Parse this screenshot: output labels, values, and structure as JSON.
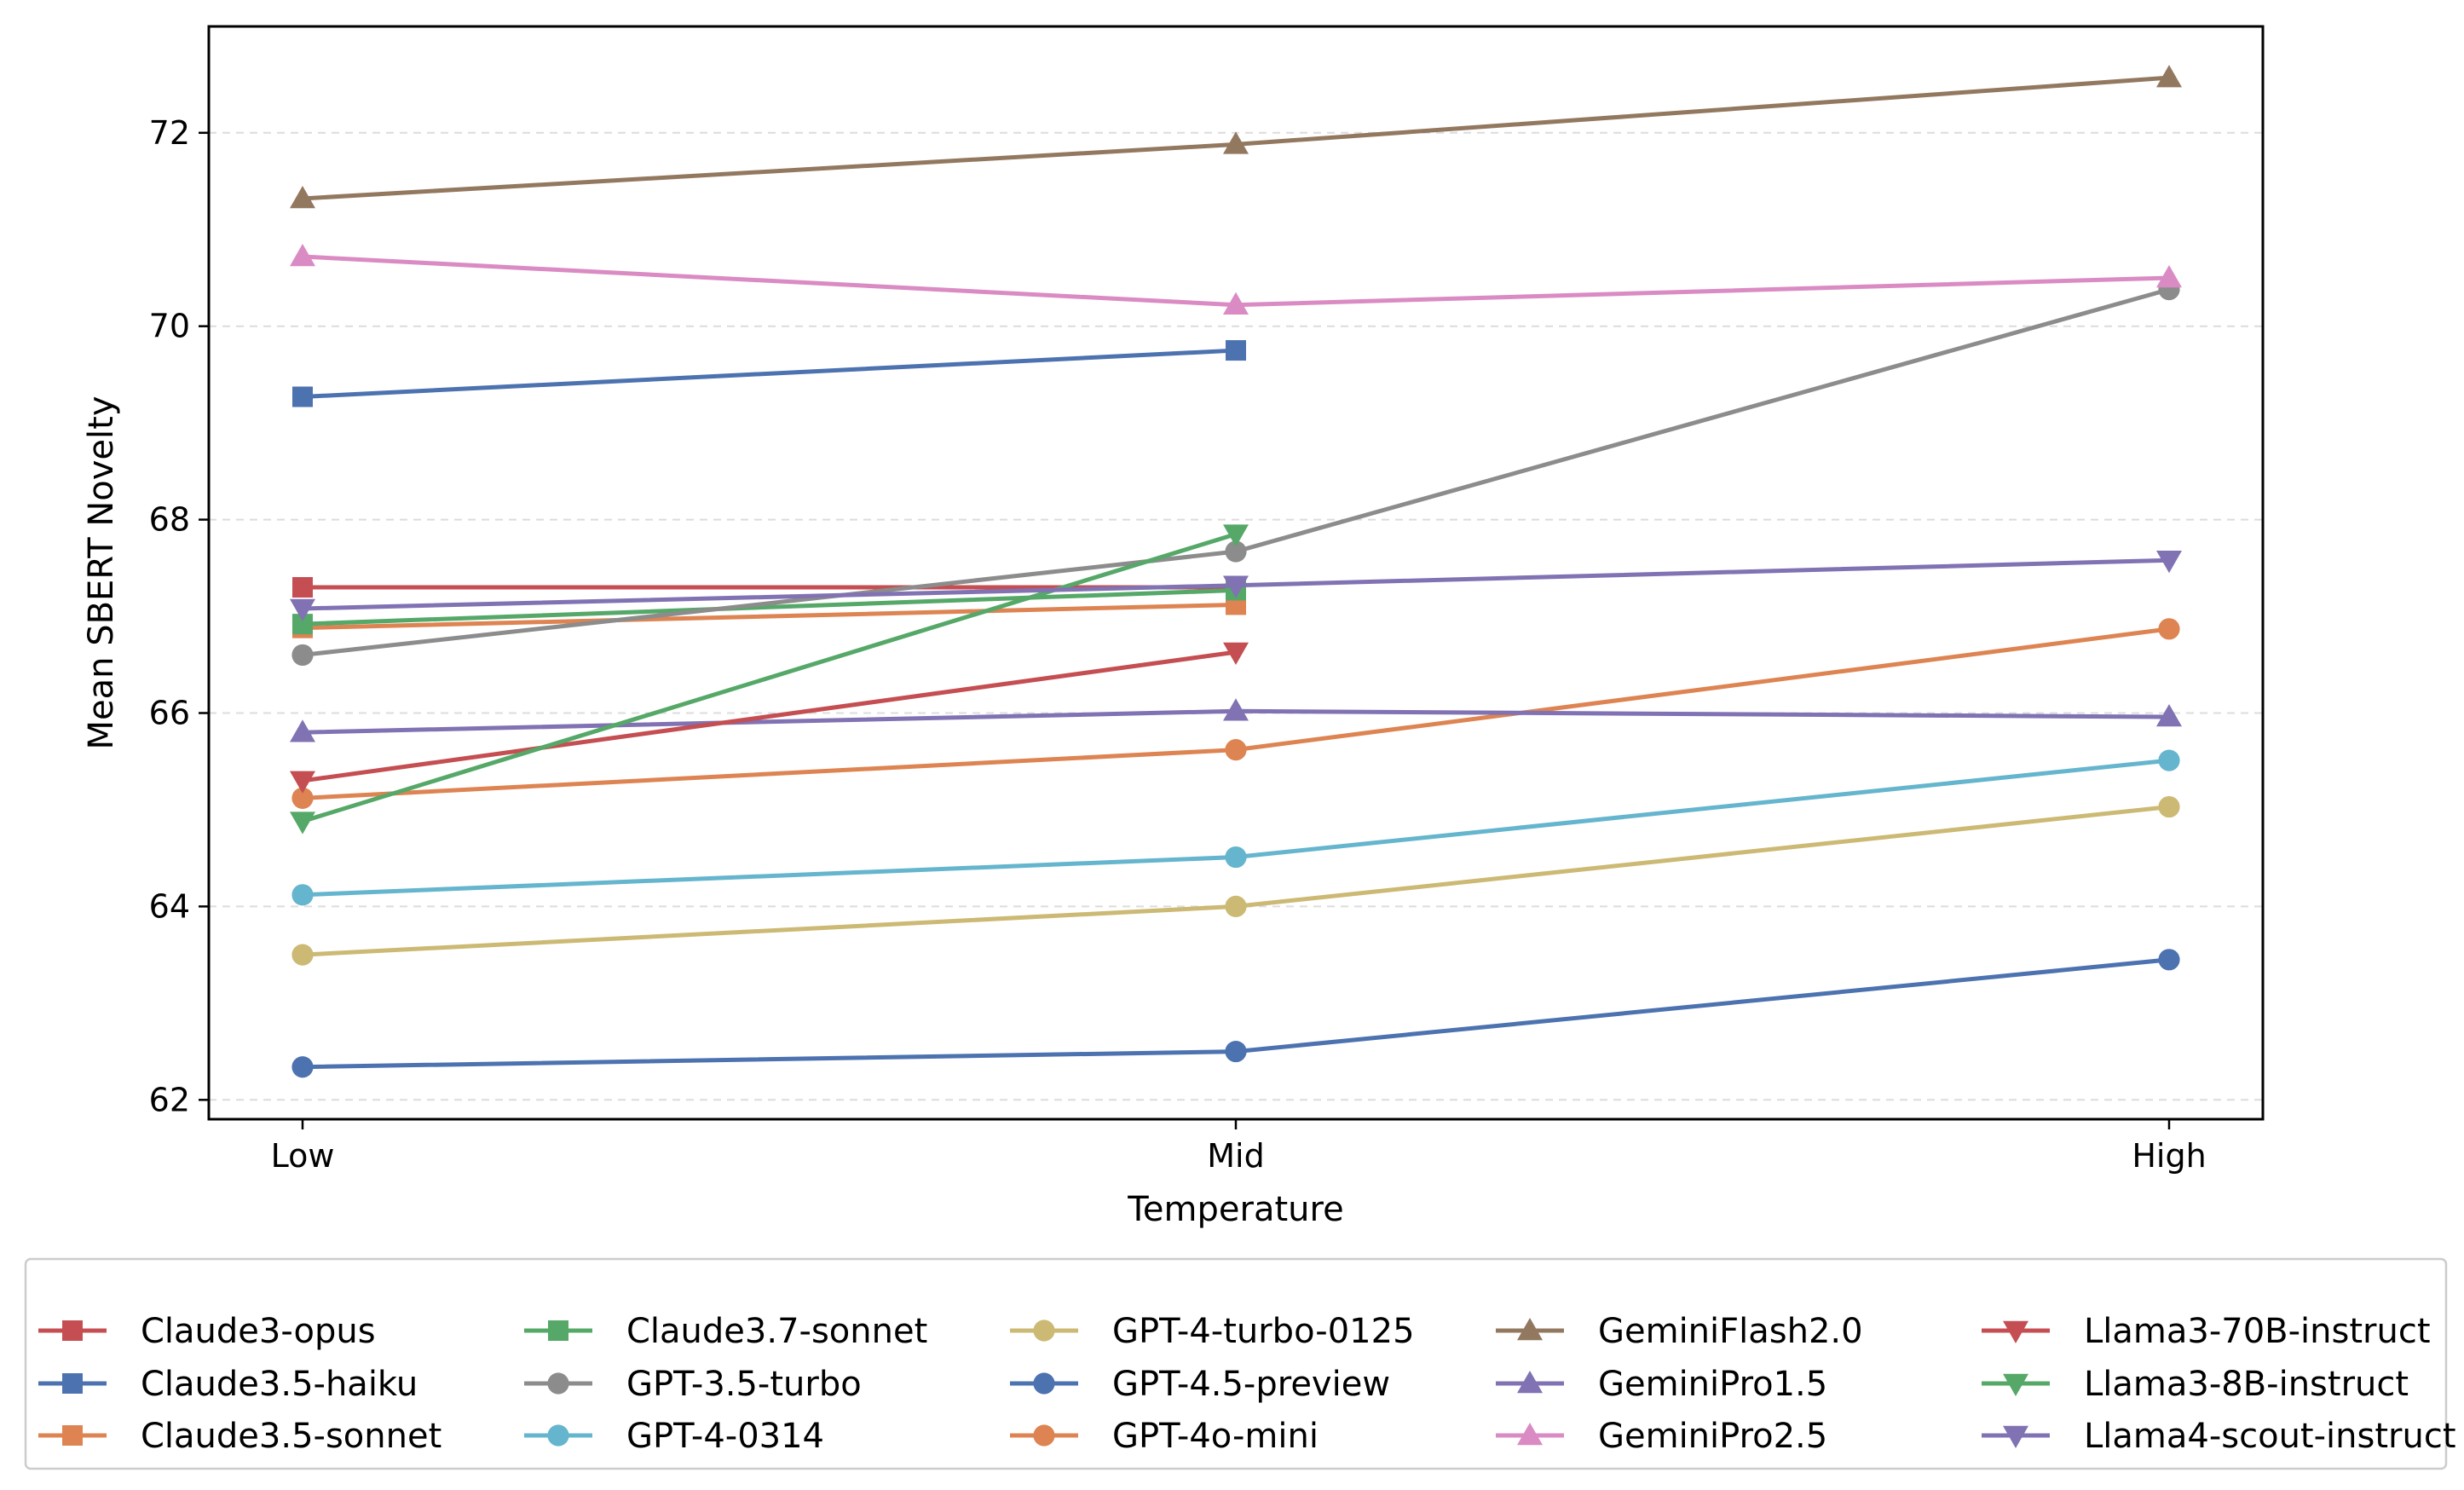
{
  "chart_data": {
    "type": "line",
    "title": "",
    "xlabel": "Temperature",
    "ylabel": "Mean SBERT Novelty",
    "categories": [
      "Low",
      "Mid",
      "High"
    ],
    "ylim": [
      61.8,
      73.1
    ],
    "yticks": [
      62,
      64,
      66,
      68,
      70,
      72
    ],
    "grid": "y-dashed",
    "legend_position": "bottom, outside, 5 columns",
    "series": [
      {
        "name": "Claude3-opus",
        "color": "#c44e52",
        "marker": "square",
        "values": [
          67.3,
          67.3,
          null
        ]
      },
      {
        "name": "Claude3.5-haiku",
        "color": "#4c72b0",
        "marker": "square",
        "values": [
          69.27,
          69.75,
          null
        ]
      },
      {
        "name": "Claude3.5-sonnet",
        "color": "#dd8452",
        "marker": "square",
        "values": [
          66.88,
          67.12,
          null
        ]
      },
      {
        "name": "Claude3.7-sonnet",
        "color": "#55a868",
        "marker": "square",
        "values": [
          66.92,
          67.27,
          null
        ]
      },
      {
        "name": "GPT-3.5-turbo",
        "color": "#8c8c8c",
        "marker": "circle",
        "values": [
          66.6,
          67.67,
          70.38
        ]
      },
      {
        "name": "GPT-4-0314",
        "color": "#64b5cd",
        "marker": "circle",
        "values": [
          64.12,
          64.51,
          65.51
        ]
      },
      {
        "name": "GPT-4-turbo-0125",
        "color": "#ccb974",
        "marker": "circle",
        "values": [
          63.5,
          64.0,
          65.03
        ]
      },
      {
        "name": "GPT-4.5-preview",
        "color": "#4c72b0",
        "marker": "circle",
        "values": [
          62.34,
          62.5,
          63.45
        ]
      },
      {
        "name": "GPT-4o-mini",
        "color": "#dd8452",
        "marker": "circle",
        "values": [
          65.12,
          65.62,
          66.87
        ]
      },
      {
        "name": "GeminiFlash2.0",
        "color": "#937860",
        "marker": "triangle-up",
        "values": [
          71.32,
          71.88,
          72.57
        ]
      },
      {
        "name": "GeminiPro1.5",
        "color": "#8172b3",
        "marker": "triangle-up",
        "values": [
          65.8,
          66.02,
          65.96
        ]
      },
      {
        "name": "GeminiPro2.5",
        "color": "#da8bc3",
        "marker": "triangle-up",
        "values": [
          70.72,
          70.22,
          70.5
        ]
      },
      {
        "name": "Llama3-70B-instruct",
        "color": "#c44e52",
        "marker": "triangle-down",
        "values": [
          65.3,
          66.63,
          null
        ]
      },
      {
        "name": "Llama3-8B-instruct",
        "color": "#55a868",
        "marker": "triangle-down",
        "values": [
          64.88,
          67.85,
          null
        ]
      },
      {
        "name": "Llama4-scout-instruct",
        "color": "#8172b3",
        "marker": "triangle-down",
        "values": [
          67.08,
          67.32,
          67.58
        ]
      }
    ]
  }
}
